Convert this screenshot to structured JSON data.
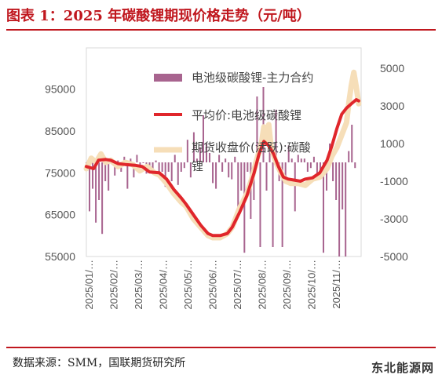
{
  "header": {
    "title": "图表 1：2025 年碳酸锂期现价格走势（元/吨）"
  },
  "footer": {
    "source": "数据来源：SMM，国联期货研究所",
    "watermark": "东北能源网"
  },
  "colors": {
    "title": "#c0171e",
    "bars": "#a8648f",
    "spot": "#e0262b",
    "futures": "#f6deb8"
  },
  "chart_data": {
    "type": "line",
    "title": "",
    "xlabel": "",
    "ylabel": "",
    "x_tick_labels": [
      "2025/01/…",
      "2025/02/…",
      "2025/03/…",
      "2025/04/…",
      "2025/05/…",
      "2025/06/…",
      "2025/07/…",
      "2025/08/…",
      "2025/09/…",
      "2025/10/…",
      "2025/11/…"
    ],
    "y_left": {
      "ticks": [
        "55000",
        "65000",
        "75000",
        "85000",
        "95000"
      ],
      "range": [
        55000,
        100000
      ]
    },
    "y_right": {
      "ticks": [
        "-5000",
        "-3000",
        "-1000",
        "1000",
        "3000",
        "5000"
      ],
      "range": [
        -5000,
        5000
      ]
    },
    "legend": {
      "position": "top-center",
      "entries": [
        {
          "label": "电池级碳酸锂-主力合约",
          "marker": "bar"
        },
        {
          "label": "平均价:电池级碳酸锂",
          "marker": "line"
        },
        {
          "label": "期货收盘价(活跃):碳酸锂",
          "marker": "line"
        }
      ]
    },
    "series": [
      {
        "name": "平均价:电池级碳酸锂",
        "axis": "left",
        "x": [
          0,
          0.3,
          0.5,
          0.8,
          1.0,
          1.3,
          1.6,
          2.0,
          2.3,
          2.6,
          3.0,
          3.3,
          3.6,
          3.9,
          4.1,
          4.4,
          4.7,
          5.0,
          5.2,
          5.5,
          5.8,
          6.0,
          6.3,
          6.6,
          6.9,
          7.1,
          7.3,
          7.5,
          7.7,
          7.9,
          8.1,
          8.3,
          8.6,
          8.8,
          9.0,
          9.3,
          9.6,
          9.9,
          10.1,
          10.3,
          10.5,
          10.7,
          10.9,
          11.1,
          11.2
        ],
        "values": [
          76500,
          76000,
          78000,
          78200,
          78000,
          77200,
          77000,
          76800,
          76500,
          75200,
          75000,
          73500,
          71000,
          69000,
          67500,
          65000,
          62500,
          60500,
          60000,
          60000,
          60500,
          62000,
          65500,
          69500,
          75000,
          79500,
          82500,
          81500,
          79500,
          76500,
          74000,
          73500,
          73200,
          73000,
          73500,
          73800,
          75000,
          78000,
          81500,
          85500,
          89000,
          90500,
          91500,
          92500,
          92200
        ]
      },
      {
        "name": "期货收盘价(活跃):碳酸锂",
        "axis": "left",
        "x": [
          0,
          0.2,
          0.4,
          0.6,
          0.8,
          1.0,
          1.3,
          1.6,
          1.9,
          2.2,
          2.5,
          2.8,
          3.0,
          3.3,
          3.6,
          3.9,
          4.1,
          4.4,
          4.7,
          5.0,
          5.2,
          5.5,
          5.8,
          6.0,
          6.3,
          6.6,
          6.8,
          7.0,
          7.2,
          7.3,
          7.4,
          7.5,
          7.6,
          7.8,
          8.0,
          8.2,
          8.4,
          8.7,
          9.0,
          9.3,
          9.6,
          9.9,
          10.1,
          10.3,
          10.5,
          10.7,
          10.8,
          10.9,
          11.0,
          11.1,
          11.2
        ],
        "values": [
          76000,
          78500,
          77500,
          79500,
          77500,
          78000,
          76500,
          77500,
          77000,
          75500,
          76500,
          75000,
          74500,
          72500,
          70000,
          68000,
          67000,
          64000,
          62000,
          60000,
          59500,
          59500,
          60500,
          62000,
          66500,
          70000,
          73500,
          78000,
          82000,
          86000,
          82500,
          86500,
          81000,
          77500,
          75000,
          73000,
          72500,
          72500,
          72000,
          73500,
          74000,
          76000,
          79000,
          81000,
          84000,
          87000,
          92000,
          96000,
          99000,
          95500,
          91500
        ]
      },
      {
        "name": "电池级碳酸锂-主力合约",
        "axis": "right",
        "type": "bar",
        "x": [
          0.0,
          0.13,
          0.26,
          0.39,
          0.52,
          0.65,
          0.78,
          0.91,
          1.04,
          1.17,
          1.3,
          1.43,
          1.56,
          1.69,
          1.82,
          1.95,
          2.08,
          2.21,
          2.34,
          2.47,
          2.6,
          2.73,
          2.86,
          2.99,
          3.12,
          3.25,
          3.38,
          3.51,
          3.64,
          3.77,
          3.9,
          4.03,
          4.16,
          4.29,
          4.42,
          4.55,
          4.68,
          4.81,
          4.94,
          5.07,
          5.2,
          5.33,
          5.46,
          5.59,
          5.72,
          5.85,
          5.98,
          6.11,
          6.24,
          6.37,
          6.5,
          6.63,
          6.76,
          6.89,
          7.02,
          7.15,
          7.28,
          7.41,
          7.54,
          7.67,
          7.8,
          7.93,
          8.06,
          8.19,
          8.32,
          8.45,
          8.58,
          8.71,
          8.84,
          8.97,
          9.1,
          9.23,
          9.36,
          9.49,
          9.62,
          9.75,
          9.88,
          10.01,
          10.14,
          10.27,
          10.4,
          10.53,
          10.66,
          10.79,
          10.92,
          11.05
        ],
        "values": [
          -300,
          -2600,
          -1400,
          -3200,
          -2000,
          -3800,
          -1000,
          -1500,
          0,
          -700,
          100,
          -500,
          300,
          -1400,
          200,
          -800,
          400,
          -300,
          0,
          -600,
          -200,
          -400,
          100,
          -800,
          -500,
          -1300,
          -500,
          -1000,
          400,
          -1200,
          -500,
          -300,
          1200,
          -800,
          1600,
          200,
          800,
          2500,
          1000,
          500,
          -1100,
          -1400,
          400,
          -500,
          200,
          -800,
          -900,
          300,
          -2400,
          -1500,
          -4800,
          -500,
          -3000,
          -2000,
          3500,
          -4500,
          4000,
          -1500,
          1200,
          -4500,
          2800,
          -1000,
          -4500,
          -1000,
          900,
          200,
          -2600,
          400,
          200,
          200,
          -500,
          -300,
          300,
          -800,
          -400,
          -4800,
          -1500,
          1000,
          -1000,
          -2000,
          -5000,
          -2500,
          -5000,
          600,
          2000,
          -300
        ]
      }
    ]
  }
}
